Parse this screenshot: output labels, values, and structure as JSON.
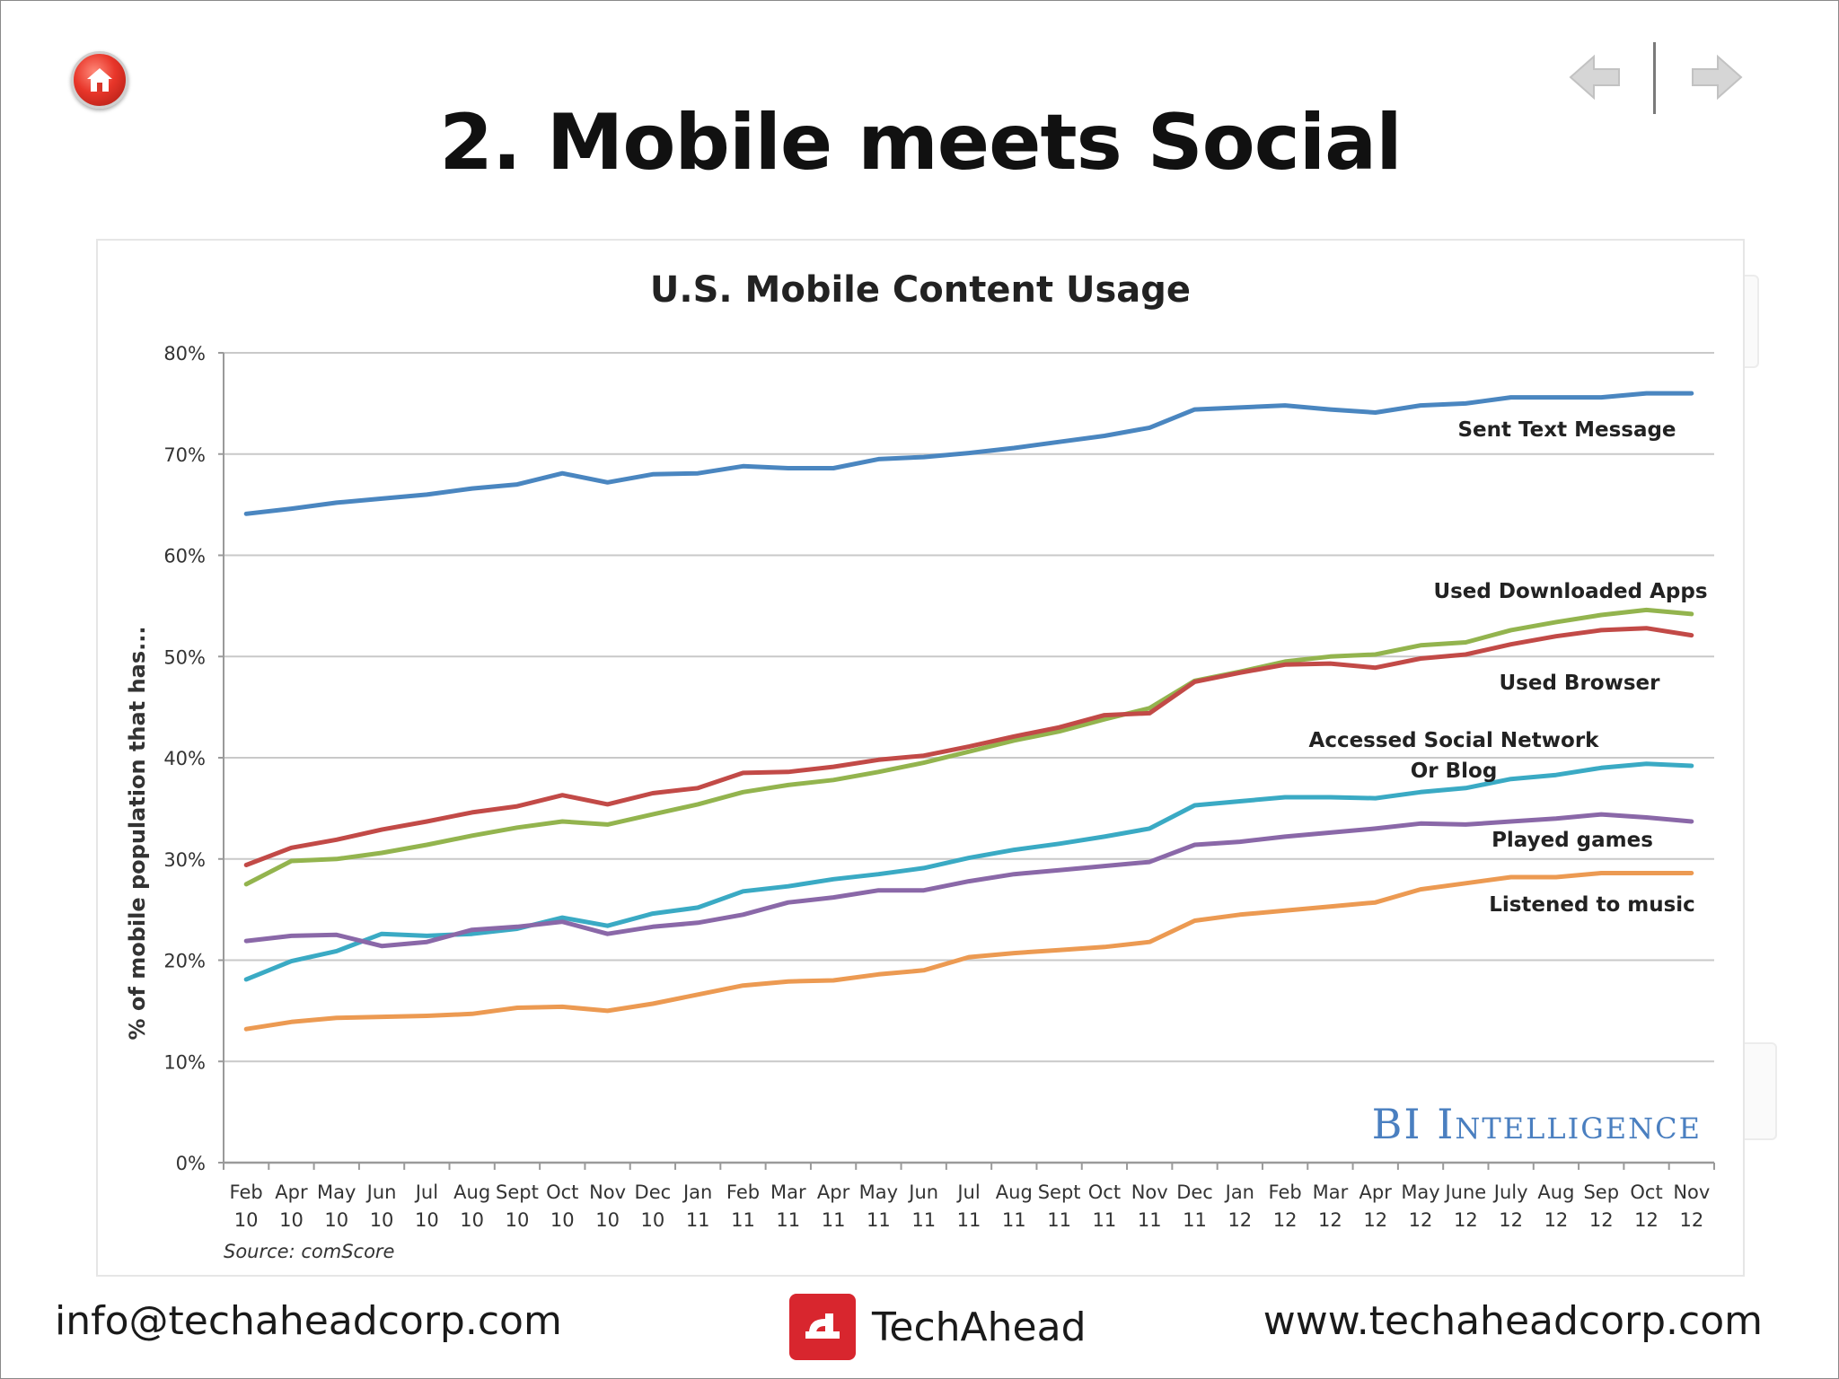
{
  "slide": {
    "title": "2. Mobile meets Social"
  },
  "nav": {
    "home_icon": "home-icon",
    "prev_icon": "arrow-left-icon",
    "next_icon": "arrow-right-icon"
  },
  "footer": {
    "email": "info@techaheadcorp.com",
    "brand": "TechAhead",
    "url": "www.techaheadcorp.com"
  },
  "colors": {
    "sent_text": "#4a86c0",
    "downloaded_apps": "#93b44e",
    "browser": "#c24a47",
    "social": "#3aaac4",
    "games": "#8a68a8",
    "music": "#ec9a52",
    "watermark": "#4a7fc0"
  },
  "chart_data": {
    "type": "line",
    "title": "U.S. Mobile Content Usage",
    "ylabel": "% of mobile population that has...",
    "xlabel": "",
    "ylim": [
      0,
      80
    ],
    "y_ticks": [
      "0%",
      "10%",
      "20%",
      "30%",
      "40%",
      "50%",
      "60%",
      "70%",
      "80%"
    ],
    "categories": [
      [
        "Feb",
        "10"
      ],
      [
        "Apr",
        "10"
      ],
      [
        "May",
        "10"
      ],
      [
        "Jun",
        "10"
      ],
      [
        "Jul",
        "10"
      ],
      [
        "Aug",
        "10"
      ],
      [
        "Sept",
        "10"
      ],
      [
        "Oct",
        "10"
      ],
      [
        "Nov",
        "10"
      ],
      [
        "Dec",
        "10"
      ],
      [
        "Jan",
        "11"
      ],
      [
        "Feb",
        "11"
      ],
      [
        "Mar",
        "11"
      ],
      [
        "Apr",
        "11"
      ],
      [
        "May",
        "11"
      ],
      [
        "Jun",
        "11"
      ],
      [
        "Jul",
        "11"
      ],
      [
        "Aug",
        "11"
      ],
      [
        "Sept",
        "11"
      ],
      [
        "Oct",
        "11"
      ],
      [
        "Nov",
        "11"
      ],
      [
        "Dec",
        "11"
      ],
      [
        "Jan",
        "12"
      ],
      [
        "Feb",
        "12"
      ],
      [
        "Mar",
        "12"
      ],
      [
        "Apr",
        "12"
      ],
      [
        "May",
        "12"
      ],
      [
        "June",
        "12"
      ],
      [
        "July",
        "12"
      ],
      [
        "Aug",
        "12"
      ],
      [
        "Sep",
        "12"
      ],
      [
        "Oct",
        "12"
      ],
      [
        "Nov",
        "12"
      ]
    ],
    "series": [
      {
        "name": "Sent Text Message",
        "label_lines": [
          "Sent Text Message"
        ],
        "color_key": "sent_text",
        "values": [
          64.1,
          64.6,
          65.2,
          65.6,
          66.0,
          66.6,
          67.0,
          68.1,
          67.2,
          68.0,
          68.1,
          68.8,
          68.6,
          68.6,
          69.5,
          69.7,
          70.1,
          70.6,
          71.2,
          71.8,
          72.6,
          74.4,
          74.6,
          74.8,
          74.4,
          74.1,
          74.8,
          75.0,
          75.6,
          75.6,
          75.6,
          76.0,
          76.0
        ]
      },
      {
        "name": "Used Downloaded Apps",
        "label_lines": [
          "Used Downloaded Apps"
        ],
        "color_key": "downloaded_apps",
        "values": [
          27.5,
          29.8,
          30.0,
          30.6,
          31.4,
          32.3,
          33.1,
          33.7,
          33.4,
          34.4,
          35.4,
          36.6,
          37.3,
          37.8,
          38.6,
          39.5,
          40.6,
          41.7,
          42.6,
          43.8,
          44.9,
          47.6,
          48.5,
          49.5,
          50.0,
          50.2,
          51.1,
          51.4,
          52.6,
          53.4,
          54.1,
          54.6,
          54.2
        ]
      },
      {
        "name": "Used Browser",
        "label_lines": [
          "Used Browser"
        ],
        "color_key": "browser",
        "values": [
          29.4,
          31.1,
          31.9,
          32.9,
          33.7,
          34.6,
          35.2,
          36.3,
          35.4,
          36.5,
          37.0,
          38.5,
          38.6,
          39.1,
          39.8,
          40.2,
          41.1,
          42.1,
          43.0,
          44.2,
          44.4,
          47.5,
          48.4,
          49.2,
          49.3,
          48.9,
          49.8,
          50.2,
          51.2,
          52.0,
          52.6,
          52.8,
          52.1
        ]
      },
      {
        "name": "Accessed Social Network Or Blog",
        "label_lines": [
          "Accessed Social Network",
          "Or Blog"
        ],
        "color_key": "social",
        "values": [
          18.1,
          19.9,
          20.9,
          22.6,
          22.4,
          22.6,
          23.1,
          24.2,
          23.4,
          24.6,
          25.2,
          26.8,
          27.3,
          28.0,
          28.5,
          29.1,
          30.1,
          30.9,
          31.5,
          32.2,
          33.0,
          35.3,
          35.7,
          36.1,
          36.1,
          36.0,
          36.6,
          37.0,
          37.9,
          38.3,
          39.0,
          39.4,
          39.2
        ]
      },
      {
        "name": "Played games",
        "label_lines": [
          "Played games"
        ],
        "color_key": "games",
        "values": [
          21.9,
          22.4,
          22.5,
          21.4,
          21.8,
          23.0,
          23.3,
          23.8,
          22.6,
          23.3,
          23.7,
          24.5,
          25.7,
          26.2,
          26.9,
          26.9,
          27.8,
          28.5,
          28.9,
          29.3,
          29.7,
          31.4,
          31.7,
          32.2,
          32.6,
          33.0,
          33.5,
          33.4,
          33.7,
          34.0,
          34.4,
          34.1,
          33.7
        ]
      },
      {
        "name": "Listened to music",
        "label_lines": [
          "Listened to music"
        ],
        "color_key": "music",
        "values": [
          13.2,
          13.9,
          14.3,
          14.4,
          14.5,
          14.7,
          15.3,
          15.4,
          15.0,
          15.7,
          16.6,
          17.5,
          17.9,
          18.0,
          18.6,
          19.0,
          20.3,
          20.7,
          21.0,
          21.3,
          21.8,
          23.9,
          24.5,
          24.9,
          25.3,
          25.7,
          27.0,
          27.6,
          28.2,
          28.2,
          28.6,
          28.6,
          28.6
        ]
      }
    ],
    "source": "Source: comScore",
    "watermark": "BI Intelligence",
    "grid": true,
    "legend": "inline labels right"
  }
}
